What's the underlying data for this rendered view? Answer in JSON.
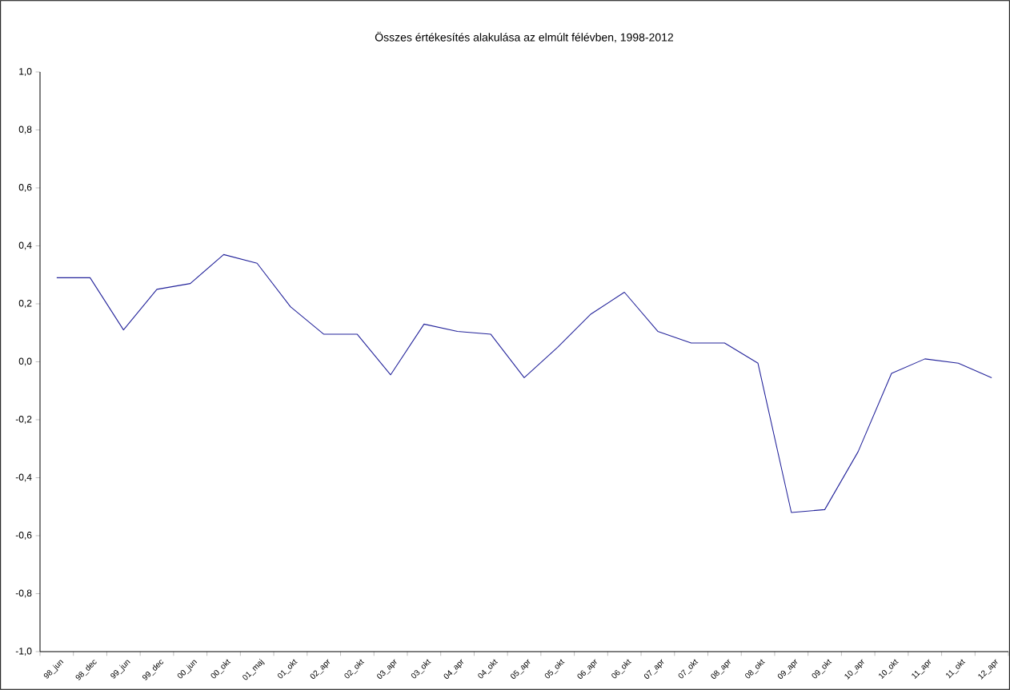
{
  "chart_data": {
    "type": "line",
    "title": "Összes értékesítés alakulása az elmúlt félévben, 1998-2012",
    "categories": [
      "98_jun",
      "98_dec",
      "99_jun",
      "99_dec",
      "00_jun",
      "00_okt",
      "01_maj",
      "01_okt",
      "02_apr",
      "02_okt",
      "03_apr",
      "03_okt",
      "04_apr",
      "04_okt",
      "05_apr",
      "05_okt",
      "06_apr",
      "06_okt",
      "07_apr",
      "07_okt",
      "08_apr",
      "08_okt",
      "09_apr",
      "09_okt",
      "10_apr",
      "10_okt",
      "11_apr",
      "11_okt",
      "12_apr"
    ],
    "values": [
      0.29,
      0.29,
      0.11,
      0.25,
      0.27,
      0.37,
      0.34,
      0.19,
      0.095,
      0.095,
      -0.045,
      0.13,
      0.105,
      0.095,
      -0.055,
      0.05,
      0.165,
      0.24,
      0.105,
      0.065,
      0.065,
      -0.005,
      -0.52,
      -0.51,
      -0.31,
      -0.04,
      0.01,
      -0.005,
      -0.055
    ],
    "color": "#22229a",
    "ylim": [
      -1.0,
      1.0
    ],
    "yticks": [
      {
        "value": -1.0,
        "label": "-1,0"
      },
      {
        "value": -0.8,
        "label": "-0,8"
      },
      {
        "value": -0.6,
        "label": "-0,6"
      },
      {
        "value": -0.4,
        "label": "-0,4"
      },
      {
        "value": -0.2,
        "label": "-0,2"
      },
      {
        "value": 0.0,
        "label": "0,0"
      },
      {
        "value": 0.2,
        "label": "0,2"
      },
      {
        "value": 0.4,
        "label": "0,4"
      },
      {
        "value": 0.6,
        "label": "0,6"
      },
      {
        "value": 0.8,
        "label": "0,8"
      },
      {
        "value": 1.0,
        "label": "1,0"
      }
    ],
    "grid": false,
    "marker": "none",
    "line_style": "solid"
  }
}
